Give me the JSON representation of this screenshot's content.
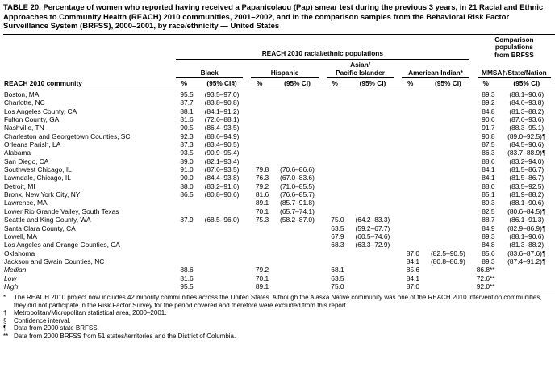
{
  "title": "TABLE 20. Percentage of women who reported having received a Papanicolaou (Pap) smear test during the previous 3 years, in 21 Racial and Ethnic Approaches to Community Health (REACH) 2010 communities, 2001–2002, and in the comparison samples from the Behavioral Risk Factor Surveillance System (BRFSS), 2000–2001, by race/ethnicity — United States",
  "table": {
    "group_headers": {
      "reach": "REACH 2010 racial/ethnic populations",
      "comparison": "Comparison\npopulations\nfrom BRFSS"
    },
    "col_groups": [
      "Black",
      "Hispanic",
      "Asian/\nPacific Islander",
      "American Indian*",
      "MMSA†/State/Nation"
    ],
    "stub_header": "REACH 2010 community",
    "sub_headers": [
      "%",
      "(95% CI§)",
      "%",
      "(95% CI)",
      "%",
      "(95% CI)",
      "%",
      "(95% CI)",
      "%",
      "(95% CI)"
    ],
    "rows": [
      [
        "Boston, MA",
        "95.5",
        "(93.5–97.0)",
        "",
        "",
        "",
        "",
        "",
        "",
        "89.3",
        "(88.1–90.6)"
      ],
      [
        "Charlotte, NC",
        "87.7",
        "(83.8–90.8)",
        "",
        "",
        "",
        "",
        "",
        "",
        "89.2",
        "(84.6–93.8)"
      ],
      [
        "Los Angeles County, CA",
        "88.1",
        "(84.1–91.2)",
        "",
        "",
        "",
        "",
        "",
        "",
        "84.8",
        "(81.3–88.2)"
      ],
      [
        "Fulton County, GA",
        "81.6",
        "(72.6–88.1)",
        "",
        "",
        "",
        "",
        "",
        "",
        "90.6",
        "(87.6–93.6)"
      ],
      [
        "Nashville, TN",
        "90.5",
        "(86.4–93.5)",
        "",
        "",
        "",
        "",
        "",
        "",
        "91.7",
        "(88.3–95.1)"
      ],
      [
        "Charleston and Georgetown Counties, SC",
        "92.3",
        "(88.6–94.9)",
        "",
        "",
        "",
        "",
        "",
        "",
        "90.8",
        "(89.0–92.5)¶"
      ],
      [
        "Orleans Parish, LA",
        "87.3",
        "(83.4–90.5)",
        "",
        "",
        "",
        "",
        "",
        "",
        "87.5",
        "(84.5–90.6)"
      ],
      [
        "Alabama",
        "93.5",
        "(90.9–95.4)",
        "",
        "",
        "",
        "",
        "",
        "",
        "86.3",
        "(83.7–88.9)¶"
      ],
      [
        "San Diego, CA",
        "89.0",
        "(82.1–93.4)",
        "",
        "",
        "",
        "",
        "",
        "",
        "88.6",
        "(83.2–94.0)"
      ],
      [
        "Southwest Chicago, IL",
        "91.0",
        "(87.6–93.5)",
        "79.8",
        "(70.6–86.6)",
        "",
        "",
        "",
        "",
        "84.1",
        "(81.5–86.7)"
      ],
      [
        "Lawndale, Chicago, IL",
        "90.0",
        "(84.4–93.8)",
        "76.3",
        "(67.0–83.6)",
        "",
        "",
        "",
        "",
        "84.1",
        "(81.5–86.7)"
      ],
      [
        "Detroit, MI",
        "88.0",
        "(83.2–91.6)",
        "79.2",
        "(71.0–85.5)",
        "",
        "",
        "",
        "",
        "88.0",
        "(83.5–92.5)"
      ],
      [
        "Bronx, New York City, NY",
        "86.5",
        "(80.8–90.6)",
        "81.6",
        "(76.6–85.7)",
        "",
        "",
        "",
        "",
        "85.1",
        "(81.9–88.2)"
      ],
      [
        "Lawrence, MA",
        "",
        "",
        "89.1",
        "(85.7–91.8)",
        "",
        "",
        "",
        "",
        "89.3",
        "(88.1–90.6)"
      ],
      [
        "Lower Rio Grande Valley, South Texas",
        "",
        "",
        "70.1",
        "(65.7–74.1)",
        "",
        "",
        "",
        "",
        "82.5",
        "(80.6–84.5)¶"
      ],
      [
        "Seattle and King County, WA",
        "87.9",
        "(68.5–96.0)",
        "75.3",
        "(58.2–87.0)",
        "75.0",
        "(64.2–83.3)",
        "",
        "",
        "88.7",
        "(86.1–91.3)"
      ],
      [
        "Santa Clara County, CA",
        "",
        "",
        "",
        "",
        "63.5",
        "(59.2–67.7)",
        "",
        "",
        "84.9",
        "(82.9–86.9)¶"
      ],
      [
        "Lowell, MA",
        "",
        "",
        "",
        "",
        "67.9",
        "(60.5–74.6)",
        "",
        "",
        "89.3",
        "(88.1–90.6)"
      ],
      [
        "Los Angeles and Orange Counties, CA",
        "",
        "",
        "",
        "",
        "68.3",
        "(63.3–72.9)",
        "",
        "",
        "84.8",
        "(81.3–88.2)"
      ],
      [
        "Oklahoma",
        "",
        "",
        "",
        "",
        "",
        "",
        "87.0",
        "(82.5–90.5)",
        "85.6",
        "(83.6–87.6)¶"
      ],
      [
        "Jackson and Swain Counties, NC",
        "",
        "",
        "",
        "",
        "",
        "",
        "84.1",
        "(80.8–86.9)",
        "89.3",
        "(87.4–91.2)¶"
      ]
    ],
    "summary_rows": [
      [
        "Median",
        "88.6",
        "",
        "79.2",
        "",
        "68.1",
        "",
        "85.6",
        "",
        "86.8**",
        ""
      ],
      [
        "Low",
        "81.6",
        "",
        "70.1",
        "",
        "63.5",
        "",
        "84.1",
        "",
        "72.6**",
        ""
      ],
      [
        "High",
        "95.5",
        "",
        "89.1",
        "",
        "75.0",
        "",
        "87.0",
        "",
        "92.0**",
        ""
      ]
    ]
  },
  "footnotes": [
    {
      "symbol": "*",
      "text": "The REACH 2010 project now includes 42 minority communities across the United States. Although the Alaska Native community was one of the REACH 2010 intervention communities, they did not participate in the Risk Factor Survey for the period covered and therefore were excluded from this report."
    },
    {
      "symbol": "†",
      "text": "Metropolitan/Micropolitan statistical area, 2000–2001."
    },
    {
      "symbol": "§",
      "text": "Confidence interval."
    },
    {
      "symbol": "¶",
      "text": "Data from 2000 state BRFSS."
    },
    {
      "symbol": "**",
      "text": "Data from 2000 BRFSS from 51 states/territories and the District of Columbia."
    }
  ]
}
